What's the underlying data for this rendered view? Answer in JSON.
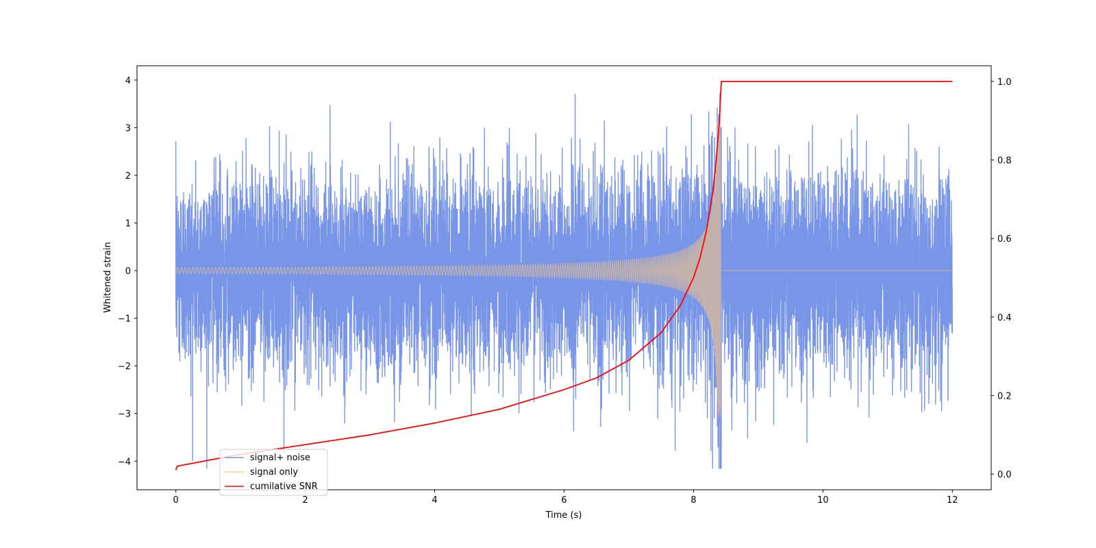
{
  "chart_data": {
    "type": "line",
    "xlabel": "Time (s)",
    "ylabel": "Whitened strain",
    "xlim": [
      -0.6,
      12.6
    ],
    "ylim": [
      -4.6,
      4.3
    ],
    "y2lim": [
      -0.04,
      1.04
    ],
    "xticks": [
      0,
      2,
      4,
      6,
      8,
      10,
      12
    ],
    "xtick_labels": [
      "0",
      "2",
      "4",
      "6",
      "8",
      "10",
      "12"
    ],
    "yticks": [
      -4,
      -3,
      -2,
      -1,
      0,
      1,
      2,
      3,
      4
    ],
    "ytick_labels": [
      "−4",
      "−3",
      "−2",
      "−1",
      "0",
      "1",
      "2",
      "3",
      "4"
    ],
    "y2ticks": [
      0.0,
      0.2,
      0.4,
      0.6,
      0.8,
      1.0
    ],
    "y2tick_labels": [
      "0.0",
      "0.2",
      "0.4",
      "0.6",
      "0.8",
      "1.0"
    ],
    "merger_time": 8.42,
    "series": [
      {
        "name": "signal+ noise",
        "color": "#7895e8",
        "axis": "left",
        "description_values": {
          "x_range": [
            0,
            12
          ],
          "approx_std": 1.0,
          "min": -4.15,
          "max": 3.88
        }
      },
      {
        "name": "signal only",
        "color": "#ffc87a",
        "axis": "left",
        "description_values": {
          "x_range": [
            0,
            12
          ],
          "envelope_start": 0.06,
          "envelope_peak": 3.1,
          "peak_time": 8.42
        }
      },
      {
        "name": "cumilative SNR",
        "color": "#ff0000",
        "axis": "right",
        "x": [
          0,
          0.02,
          0.5,
          1,
          2,
          3,
          4,
          5,
          6,
          6.5,
          7,
          7.5,
          7.8,
          8.0,
          8.1,
          8.2,
          8.3,
          8.35,
          8.4,
          8.42,
          8.43,
          12
        ],
        "y": [
          0.01,
          0.02,
          0.035,
          0.05,
          0.075,
          0.1,
          0.13,
          0.165,
          0.215,
          0.245,
          0.29,
          0.36,
          0.43,
          0.5,
          0.55,
          0.62,
          0.72,
          0.8,
          0.9,
          0.97,
          1.0,
          1.0
        ]
      }
    ],
    "legend": {
      "placement": "lower-left",
      "entries": [
        "signal+ noise",
        "signal only",
        "cumilative SNR"
      ]
    },
    "grid": false
  }
}
